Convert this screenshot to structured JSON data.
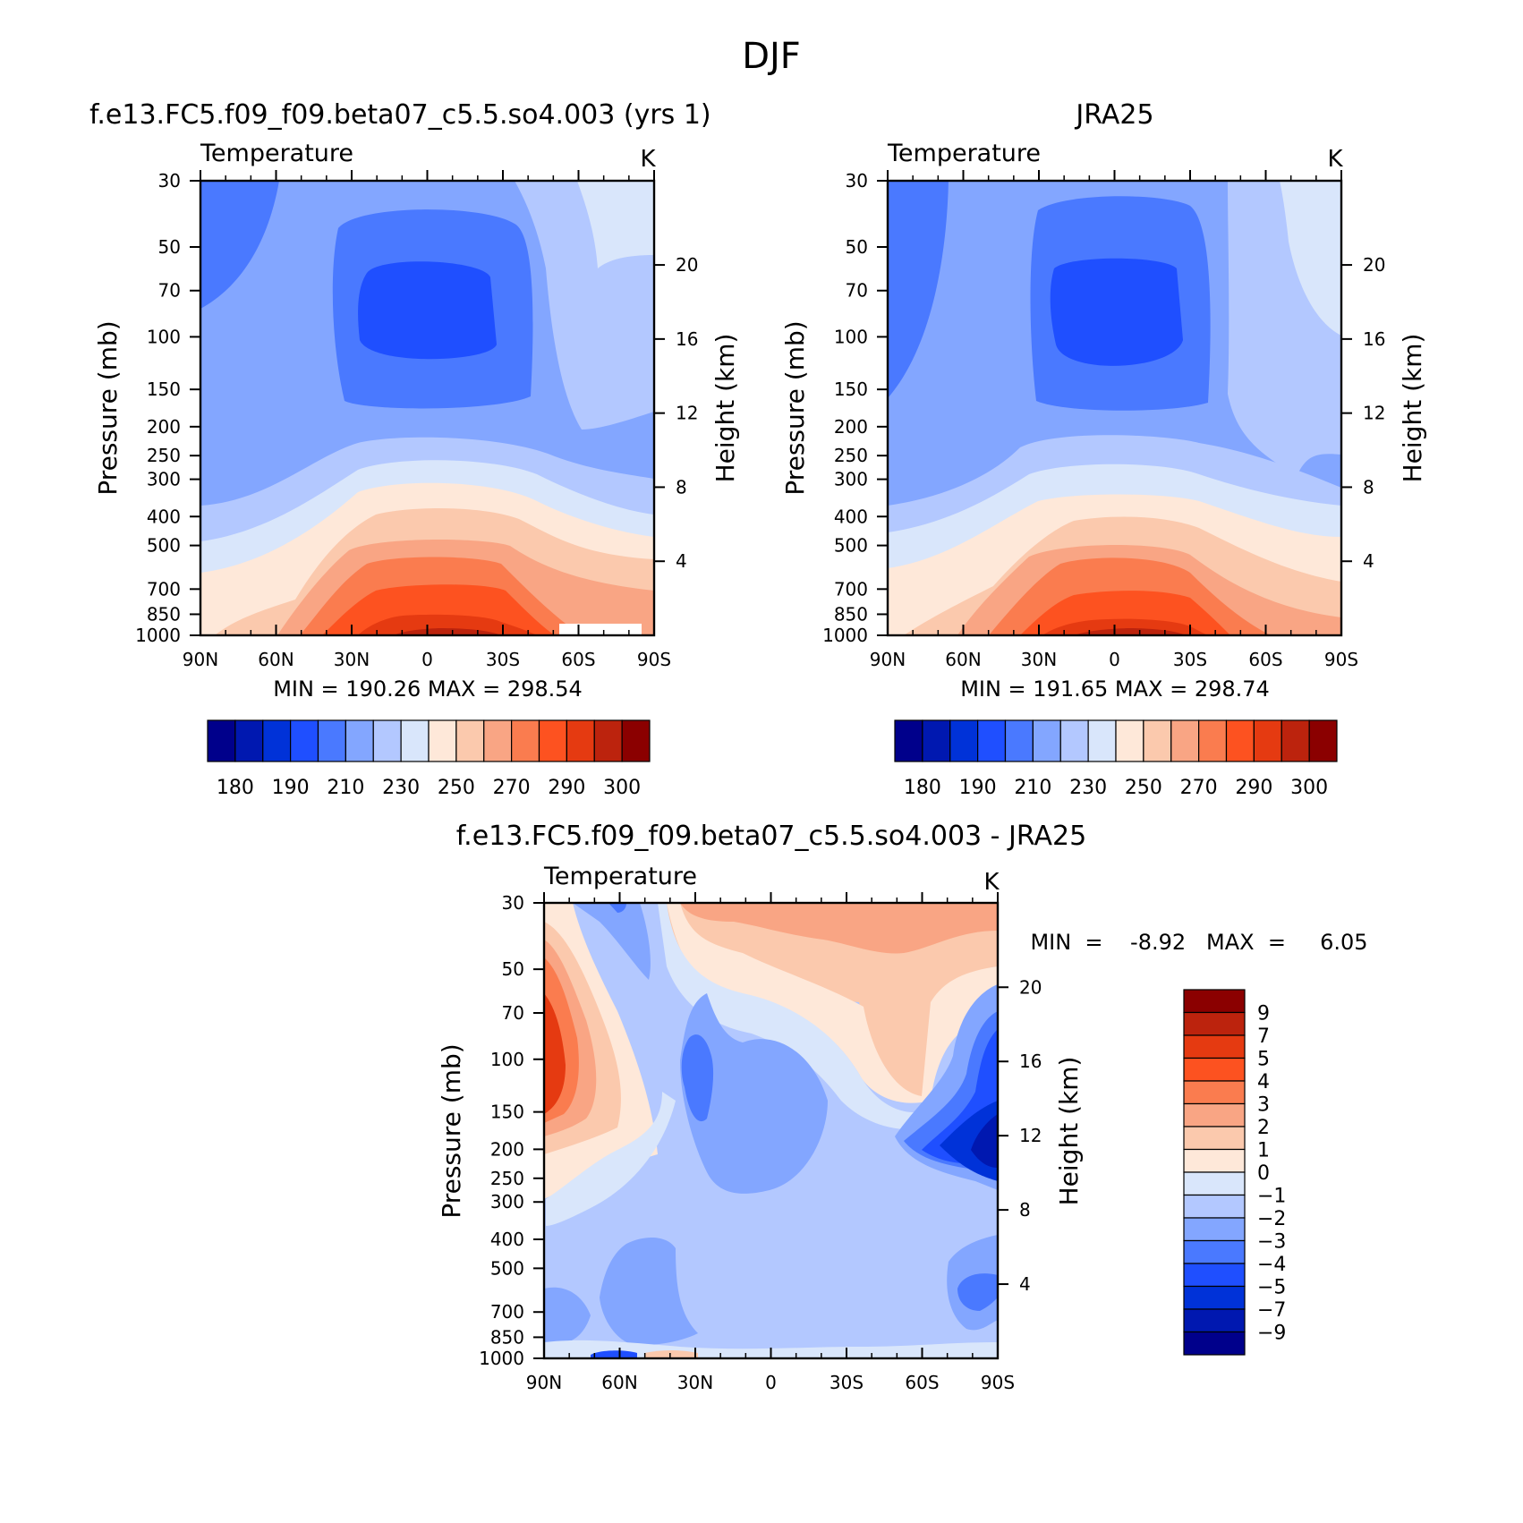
{
  "figure": {
    "title": "DJF"
  },
  "colors": {
    "abs_palette": [
      "#00008b",
      "#0018b0",
      "#0032d8",
      "#1f4fff",
      "#4a79ff",
      "#83a6ff",
      "#b3c8ff",
      "#d9e6fb",
      "#fee8d9",
      "#fbc9ad",
      "#f9a584",
      "#fa7c4f",
      "#fd5220",
      "#e53a11",
      "#bc230d",
      "#8b0000"
    ],
    "diff_palette": [
      "#00008b",
      "#0018b0",
      "#0032d8",
      "#1f4fff",
      "#4a79ff",
      "#83a6ff",
      "#b3c8ff",
      "#d9e6fb",
      "#fee8d9",
      "#fbc9ad",
      "#f9a584",
      "#fa7c4f",
      "#fd5220",
      "#e53a11",
      "#bc230d",
      "#8b0000"
    ]
  },
  "chart_data": [
    {
      "id": "model",
      "type": "contour",
      "title": "f.e13.FC5.f09_f09.beta07_c5.5.so4.003 (yrs  1)",
      "left_label": "Temperature",
      "unit_label": "K",
      "ylabel": "Pressure  (mb)",
      "ylabel_right": "Height  (km)",
      "x_ticks": [
        "90N",
        "60N",
        "30N",
        "0",
        "30S",
        "60S",
        "90S"
      ],
      "y_ticks": [
        "30",
        "50",
        "70",
        "100",
        "150",
        "200",
        "250",
        "300",
        "400",
        "500",
        "700",
        "850",
        "1000"
      ],
      "right_ticks": [
        "20",
        "16",
        "12",
        "8",
        "4"
      ],
      "stats": "MIN  =  190.26   MAX  =  298.54",
      "min": 190.26,
      "max": 298.54,
      "colorbar_labels": [
        "180",
        "190",
        "210",
        "230",
        "250",
        "270",
        "290",
        "300"
      ],
      "contour_levels": [
        180,
        185,
        190,
        200,
        210,
        220,
        230,
        240,
        250,
        260,
        270,
        280,
        290,
        295,
        300
      ],
      "bands_from_top": [
        {
          "level": "205-215 K",
          "color_index": 5
        },
        {
          "level": "215-225 K",
          "color_index": 6
        },
        {
          "level": "225-235 K",
          "color_index": 7
        },
        {
          "level": "235-245 K",
          "color_index": 8
        },
        {
          "level": "245-255 K",
          "color_index": 9
        },
        {
          "level": "255-265 K",
          "color_index": 10
        },
        {
          "level": "265-275 K",
          "color_index": 11
        },
        {
          "level": "275-285 K",
          "color_index": 12
        },
        {
          "level": "285-295 K",
          "color_index": 13
        },
        {
          "level": "295-300 K",
          "color_index": 14
        }
      ]
    },
    {
      "id": "obs",
      "type": "contour",
      "title": "JRA25",
      "left_label": "Temperature",
      "unit_label": "K",
      "ylabel": "Pressure  (mb)",
      "ylabel_right": "Height  (km)",
      "x_ticks": [
        "90N",
        "60N",
        "30N",
        "0",
        "30S",
        "60S",
        "90S"
      ],
      "y_ticks": [
        "30",
        "50",
        "70",
        "100",
        "150",
        "200",
        "250",
        "300",
        "400",
        "500",
        "700",
        "850",
        "1000"
      ],
      "right_ticks": [
        "20",
        "16",
        "12",
        "8",
        "4"
      ],
      "stats": "MIN  =  191.65   MAX  =  298.74",
      "min": 191.65,
      "max": 298.74,
      "colorbar_labels": [
        "180",
        "190",
        "210",
        "230",
        "250",
        "270",
        "290",
        "300"
      ]
    },
    {
      "id": "diff",
      "type": "contour",
      "title": "f.e13.FC5.f09_f09.beta07_c5.5.so4.003 - JRA25",
      "left_label": "Temperature",
      "unit_label": "K",
      "ylabel": "Pressure  (mb)",
      "ylabel_right": "Height  (km)",
      "x_ticks": [
        "90N",
        "60N",
        "30N",
        "0",
        "30S",
        "60S",
        "90S"
      ],
      "y_ticks": [
        "30",
        "50",
        "70",
        "100",
        "150",
        "200",
        "250",
        "300",
        "400",
        "500",
        "700",
        "850",
        "1000"
      ],
      "right_ticks": [
        "20",
        "16",
        "12",
        "8",
        "4"
      ],
      "stats": "MIN  =    -8.92   MAX  =     6.05",
      "min": -8.92,
      "max": 6.05,
      "colorbar_labels": [
        "9",
        "7",
        "5",
        "4",
        "3",
        "2",
        "1",
        "0",
        "-1",
        "-2",
        "-3",
        "-4",
        "-5",
        "-7",
        "-9"
      ]
    }
  ]
}
